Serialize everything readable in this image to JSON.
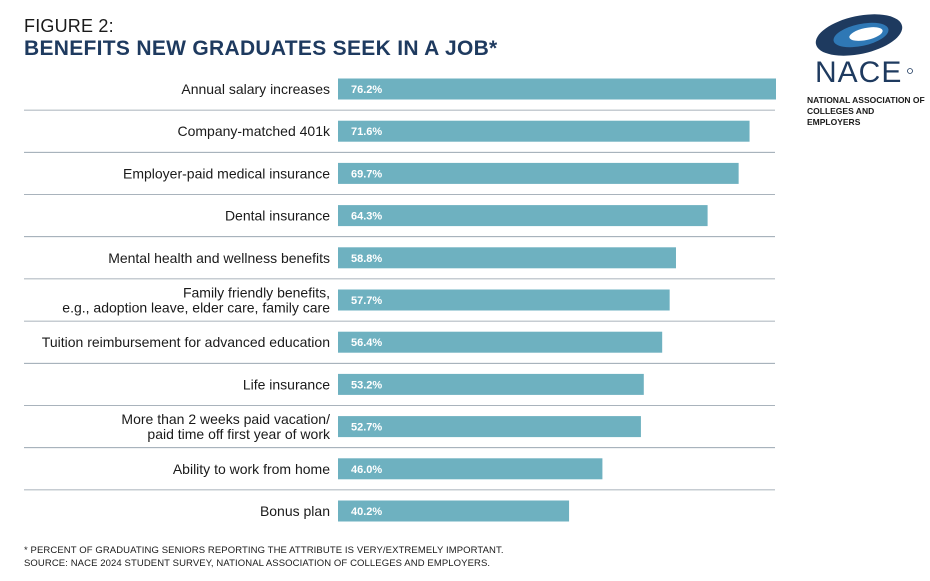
{
  "figure_label": "FIGURE 2:",
  "title": "BENEFITS NEW GRADUATES SEEK IN A JOB*",
  "logo": {
    "name": "NACE",
    "subtitle_line1": "NATIONAL ASSOCIATION OF",
    "subtitle_line2": "COLLEGES AND EMPLOYERS",
    "colors": {
      "navy": "#1e3a5f",
      "blue": "#2f78b5"
    }
  },
  "footnote": {
    "line1": "* PERCENT OF GRADUATING SENIORS REPORTING THE ATTRIBUTE IS VERY/EXTREMELY IMPORTANT.",
    "line2": "SOURCE: NACE 2024 STUDENT SURVEY, NATIONAL ASSOCIATION OF COLLEGES AND EMPLOYERS."
  },
  "colors": {
    "bar": "#6eb1c0",
    "divider": "#8c9aa6",
    "value_text": "#ffffff"
  },
  "chart_data": {
    "type": "bar",
    "orientation": "horizontal",
    "categories": [
      [
        "Annual salary increases"
      ],
      [
        "Company-matched 401k"
      ],
      [
        "Employer-paid medical insurance"
      ],
      [
        "Dental insurance"
      ],
      [
        "Mental health and wellness benefits"
      ],
      [
        "Family friendly benefits,",
        "e.g., adoption leave, elder care, family care"
      ],
      [
        "Tuition reimbursement for advanced education"
      ],
      [
        "Life insurance"
      ],
      [
        "More than 2 weeks paid vacation/",
        "paid time off first year of work"
      ],
      [
        "Ability to work from home"
      ],
      [
        "Bonus plan"
      ]
    ],
    "values": [
      76.2,
      71.6,
      69.7,
      64.3,
      58.8,
      57.7,
      56.4,
      53.2,
      52.7,
      46.0,
      40.2
    ],
    "value_labels": [
      "76.2%",
      "71.6%",
      "69.7%",
      "64.3%",
      "58.8%",
      "57.7%",
      "56.4%",
      "53.2%",
      "52.7%",
      "46.0%",
      "40.2%"
    ],
    "xlim": [
      0,
      76.2
    ],
    "grid": false
  }
}
